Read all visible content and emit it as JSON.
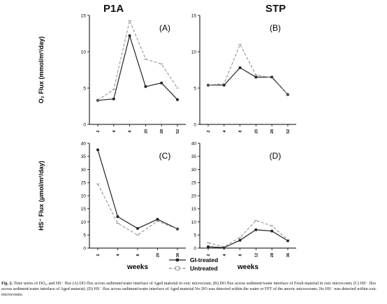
{
  "columns": [
    "P1A",
    "STP"
  ],
  "caption": {
    "label": "Fig. 2.",
    "text": "Time series of DOₓₓ and HS⁻ flux (A) DO flux across sediment/water interface of Aged material in oxic microcosm; (B) DO flux across sediment/water interface of Fresh material in oxic microcosm; (C) HS⁻ flux across sediment/water interface of Aged material; (D) HS⁻ flux across sediment/water interface of Aged material No DO was detected within the water or FFT of the anoxic microcosms. No HS⁻ was detected within oxic microcosms."
  },
  "legend": [
    {
      "name": "GI-treated",
      "color": "#222222",
      "dash": "solid"
    },
    {
      "name": "Untreated",
      "color": "#888888",
      "dash": "dashed"
    }
  ],
  "chart_data": [
    {
      "panel": "(A)",
      "type": "line",
      "ylabel": "O₂ Flux (mmol/m²/day)",
      "xlabel": "",
      "x": [
        "2",
        "4",
        "8",
        "20",
        "28",
        "52"
      ],
      "ylim": [
        0,
        15
      ],
      "yticks": [
        0,
        5,
        10,
        15
      ],
      "series": [
        {
          "name": "GI-treated",
          "values": [
            3.3,
            3.5,
            12.2,
            5.2,
            5.7,
            3.4
          ]
        },
        {
          "name": "Untreated",
          "values": [
            3.3,
            4.8,
            14.3,
            9.0,
            8.3,
            5.0
          ]
        }
      ]
    },
    {
      "panel": "(B)",
      "type": "line",
      "ylabel": "",
      "xlabel": "",
      "x": [
        "2",
        "4",
        "8",
        "20",
        "28",
        "52"
      ],
      "ylim": [
        0,
        15
      ],
      "yticks": [
        0,
        5,
        10,
        15
      ],
      "series": [
        {
          "name": "GI-treated",
          "values": [
            5.4,
            5.4,
            7.8,
            6.5,
            6.5,
            4.1
          ]
        },
        {
          "name": "Untreated",
          "values": [
            5.4,
            5.6,
            11.0,
            6.8,
            6.4,
            4.1
          ]
        }
      ]
    },
    {
      "panel": "(C)",
      "type": "line",
      "ylabel": "HS⁻ Flux (μmol/m²/day)",
      "xlabel": "weeks",
      "x": [
        "2",
        "4",
        "8",
        "20",
        "36"
      ],
      "ylim": [
        0,
        40
      ],
      "yticks": [
        0,
        5,
        10,
        15,
        20,
        25,
        30,
        35,
        40
      ],
      "series": [
        {
          "name": "GI-treated",
          "values": [
            37.5,
            12.0,
            7.5,
            11.0,
            7.3
          ]
        },
        {
          "name": "Untreated",
          "values": [
            24.5,
            9.5,
            5.0,
            10.3,
            7.3
          ]
        }
      ]
    },
    {
      "panel": "(D)",
      "type": "line",
      "ylabel": "",
      "xlabel": "weeks",
      "x": [
        "2",
        "4",
        "8",
        "12",
        "28",
        "36"
      ],
      "ylim": [
        0,
        40
      ],
      "yticks": [
        0,
        5,
        10,
        15,
        20,
        25,
        30,
        35,
        40
      ],
      "series": [
        {
          "name": "GI-treated",
          "values": [
            0.5,
            0.2,
            3.0,
            7.0,
            6.5,
            2.8
          ]
        },
        {
          "name": "Untreated",
          "values": [
            2.0,
            0.5,
            4.0,
            10.5,
            8.5,
            3.2
          ]
        }
      ]
    }
  ]
}
